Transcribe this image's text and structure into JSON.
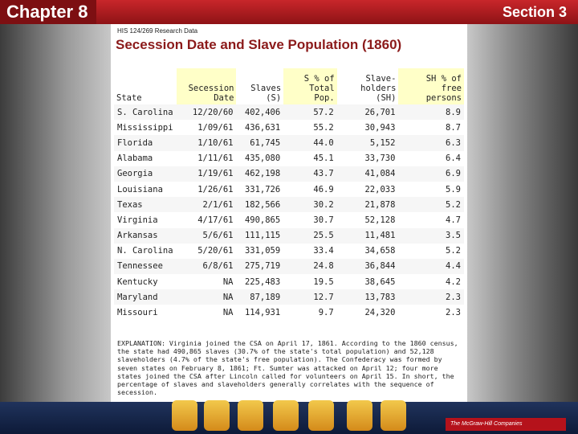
{
  "header": {
    "chapter": "Chapter 8",
    "section": "Section 3"
  },
  "document": {
    "source": "HIS 124/269 Research Data",
    "title": "Secession Date and Slave Population (1860)",
    "table": {
      "columns": [
        "State",
        "Secession Date",
        "Slaves (S)",
        "S % of Total Pop.",
        "Slave-holders (SH)",
        "SH % of free persons"
      ],
      "rows": [
        [
          "S. Carolina",
          "12/20/60",
          "402,406",
          "57.2",
          "26,701",
          "8.9"
        ],
        [
          "Mississippi",
          "1/09/61",
          "436,631",
          "55.2",
          "30,943",
          "8.7"
        ],
        [
          "Florida",
          "1/10/61",
          "61,745",
          "44.0",
          "5,152",
          "6.3"
        ],
        [
          "Alabama",
          "1/11/61",
          "435,080",
          "45.1",
          "33,730",
          "6.4"
        ],
        [
          "Georgia",
          "1/19/61",
          "462,198",
          "43.7",
          "41,084",
          "6.9"
        ],
        [
          "Louisiana",
          "1/26/61",
          "331,726",
          "46.9",
          "22,033",
          "5.9"
        ],
        [
          "Texas",
          "2/1/61",
          "182,566",
          "30.2",
          "21,878",
          "5.2"
        ],
        [
          "Virginia",
          "4/17/61",
          "490,865",
          "30.7",
          "52,128",
          "4.7"
        ],
        [
          "Arkansas",
          "5/6/61",
          "111,115",
          "25.5",
          "11,481",
          "3.5"
        ],
        [
          "N. Carolina",
          "5/20/61",
          "331,059",
          "33.4",
          "34,658",
          "5.2"
        ],
        [
          "Tennessee",
          "6/8/61",
          "275,719",
          "24.8",
          "36,844",
          "4.4"
        ],
        [
          "Kentucky",
          "NA",
          "225,483",
          "19.5",
          "38,645",
          "4.2"
        ],
        [
          "Maryland",
          "NA",
          "87,189",
          "12.7",
          "13,783",
          "2.3"
        ],
        [
          "Missouri",
          "NA",
          "114,931",
          "9.7",
          "24,320",
          "2.3"
        ]
      ]
    },
    "explanation": "EXPLANATION: Virginia joined the CSA on April 17, 1861. According to the 1860 census, the state had 490,865 slaves (30.7% of the state's total population) and 52,128 slaveholders (4.7% of the state's free population). The Confederacy was formed by seven states on February 8, 1861; Ft. Sumter was attacked on April 12; four more states joined the CSA after Lincoln called for volunteers on April 15. In short, the percentage of slaves and slaveholders generally correlates with the sequence of secession."
  },
  "footer": {
    "publisher": "The McGraw-Hill Companies"
  }
}
